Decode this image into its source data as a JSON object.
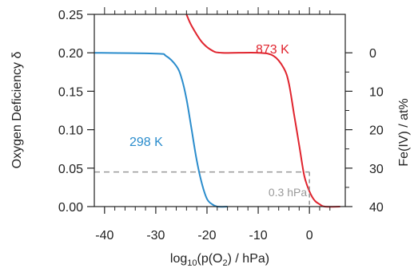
{
  "chart_data": {
    "type": "line",
    "xlabel": "log",
    "xlabel_sub": "10",
    "xlabel_mid": "(p(O",
    "xlabel_sub2": "2",
    "xlabel_tail": ") / hPa)",
    "ylabel_left": "Oxygen Deficiency δ",
    "ylabel_right": "Fe(IV) / at%",
    "xlim": [
      -42,
      7
    ],
    "ylim": [
      0,
      0.25
    ],
    "x_ticks": [
      -40,
      -30,
      -20,
      -10,
      0
    ],
    "x_tick_labels": [
      "-40",
      "-30",
      "-20",
      "-10",
      "0"
    ],
    "y_ticks": [
      0.0,
      0.05,
      0.1,
      0.15,
      0.2,
      0.25
    ],
    "y_tick_labels": [
      "0.00",
      "0.05",
      "0.10",
      "0.15",
      "0.20",
      "0.25"
    ],
    "right_axis": {
      "ticks": [
        0,
        10,
        20,
        30,
        40
      ],
      "tick_labels": [
        "0",
        "10",
        "20",
        "30",
        "40"
      ],
      "mapping": "delta = 0.2 - 0.005 * FeIV"
    },
    "series": [
      {
        "name": "298 K",
        "color": "#2a8ccc",
        "points": [
          [
            -42,
            0.2
          ],
          [
            -30,
            0.199
          ],
          [
            -28,
            0.196
          ],
          [
            -26,
            0.183
          ],
          [
            -25,
            0.168
          ],
          [
            -24,
            0.14
          ],
          [
            -23,
            0.1
          ],
          [
            -22,
            0.06
          ],
          [
            -21,
            0.03
          ],
          [
            -20,
            0.01
          ],
          [
            -19,
            0.003
          ],
          [
            -18,
            0.0
          ],
          [
            -16,
            0.0
          ]
        ]
      },
      {
        "name": "873 K",
        "color": "#e0242e",
        "points": [
          [
            -24,
            0.25
          ],
          [
            -23,
            0.235
          ],
          [
            -21,
            0.214
          ],
          [
            -19,
            0.203
          ],
          [
            -17,
            0.2
          ],
          [
            -10,
            0.2
          ],
          [
            -7,
            0.196
          ],
          [
            -5,
            0.18
          ],
          [
            -4,
            0.16
          ],
          [
            -3,
            0.12
          ],
          [
            -2,
            0.08
          ],
          [
            -1,
            0.04
          ],
          [
            0,
            0.02
          ],
          [
            1,
            0.008
          ],
          [
            2,
            0.003
          ],
          [
            3,
            0.0
          ],
          [
            6,
            0.0
          ]
        ]
      }
    ],
    "reference_line": {
      "y": 0.045,
      "x_end": 0,
      "label": "0.3 hPa",
      "color": "#999999"
    },
    "grid": false,
    "legend": "none"
  }
}
